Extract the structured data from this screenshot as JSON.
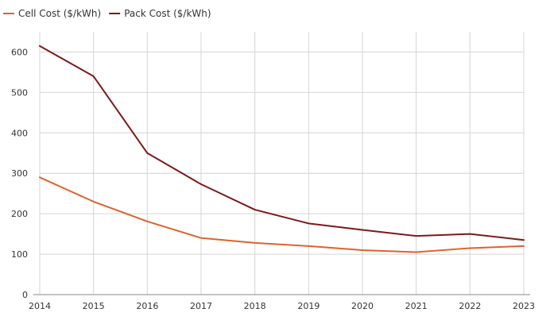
{
  "chart_data": {
    "type": "line",
    "title": "",
    "xlabel": "",
    "ylabel": "",
    "categories": [
      "2014",
      "2015",
      "2016",
      "2017",
      "2018",
      "2019",
      "2020",
      "2021",
      "2022",
      "2023"
    ],
    "series": [
      {
        "name": "Cell Cost ($/kWh)",
        "color": "#e0622a",
        "values": [
          290,
          230,
          181,
          140,
          128,
          120,
          110,
          105,
          115,
          120
        ]
      },
      {
        "name": "Pack Cost ($/kWh)",
        "color": "#7b1a1a",
        "values": [
          615,
          540,
          350,
          273,
          210,
          176,
          160,
          145,
          150,
          135
        ]
      }
    ],
    "ylim": [
      0,
      650
    ],
    "yticks": [
      0,
      100,
      200,
      300,
      400,
      500,
      600
    ],
    "grid": true,
    "legend_position": "top-left"
  }
}
